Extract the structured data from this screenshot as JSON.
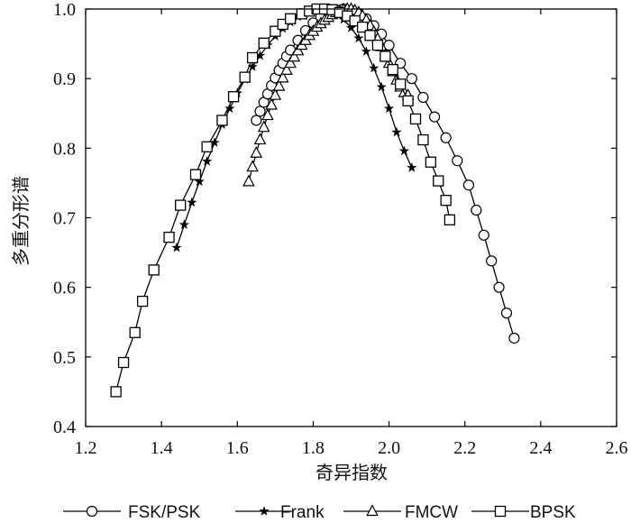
{
  "chart_data": {
    "type": "line",
    "title": "",
    "xlabel": "奇异指数",
    "ylabel": "多重分形谱",
    "xlim": [
      1.2,
      2.6
    ],
    "ylim": [
      0.4,
      1.0
    ],
    "xticks": [
      1.2,
      1.4,
      1.6,
      1.8,
      2.0,
      2.2,
      2.4,
      2.6
    ],
    "yticks": [
      0.4,
      0.5,
      0.6,
      0.7,
      0.8,
      0.9,
      1.0
    ],
    "xtick_labels": [
      "1.2",
      "1.4",
      "1.6",
      "1.8",
      "2.0",
      "2.2",
      "2.4",
      "2.6"
    ],
    "ytick_labels": [
      "0.4",
      "0.5",
      "0.6",
      "0.7",
      "0.8",
      "0.9",
      "1.0"
    ],
    "grid": false,
    "legend": "bottom",
    "series": [
      {
        "name": "FSK/PSK",
        "marker": "circle",
        "x": [
          1.65,
          1.66,
          1.67,
          1.68,
          1.69,
          1.7,
          1.71,
          1.72,
          1.73,
          1.74,
          1.76,
          1.78,
          1.8,
          1.82,
          1.84,
          1.86,
          1.88,
          1.9,
          1.92,
          1.94,
          1.96,
          1.98,
          2.0,
          2.03,
          2.06,
          2.09,
          2.12,
          2.15,
          2.18,
          2.21,
          2.23,
          2.25,
          2.27,
          2.29,
          2.31,
          2.33
        ],
        "y": [
          0.84,
          0.853,
          0.866,
          0.878,
          0.89,
          0.901,
          0.912,
          0.922,
          0.932,
          0.941,
          0.955,
          0.969,
          0.98,
          0.989,
          0.995,
          0.999,
          1.0,
          0.998,
          0.993,
          0.986,
          0.976,
          0.964,
          0.948,
          0.922,
          0.9,
          0.873,
          0.845,
          0.815,
          0.782,
          0.747,
          0.711,
          0.675,
          0.638,
          0.6,
          0.563,
          0.527
        ]
      },
      {
        "name": "Frank",
        "marker": "star",
        "x": [
          1.44,
          1.46,
          1.48,
          1.5,
          1.52,
          1.54,
          1.56,
          1.58,
          1.6,
          1.62,
          1.64,
          1.66,
          1.68,
          1.7,
          1.72,
          1.74,
          1.76,
          1.78,
          1.8,
          1.82,
          1.84,
          1.86,
          1.88,
          1.9,
          1.92,
          1.94,
          1.96,
          1.98,
          2.0,
          2.02,
          2.04,
          2.06
        ],
        "y": [
          0.657,
          0.69,
          0.722,
          0.752,
          0.781,
          0.808,
          0.834,
          0.857,
          0.879,
          0.899,
          0.917,
          0.933,
          0.948,
          0.961,
          0.972,
          0.981,
          0.989,
          0.995,
          0.999,
          1.0,
          0.998,
          0.993,
          0.985,
          0.973,
          0.958,
          0.939,
          0.915,
          0.888,
          0.857,
          0.823,
          0.796,
          0.772
        ]
      },
      {
        "name": "FMCW",
        "marker": "triangle",
        "x": [
          1.63,
          1.64,
          1.65,
          1.66,
          1.67,
          1.68,
          1.69,
          1.7,
          1.71,
          1.72,
          1.73,
          1.74,
          1.75,
          1.76,
          1.77,
          1.78,
          1.79,
          1.8,
          1.81,
          1.82,
          1.83,
          1.84,
          1.85,
          1.86,
          1.87,
          1.88,
          1.89,
          1.9,
          1.91,
          1.92,
          1.93,
          1.94,
          1.95,
          1.96,
          1.97,
          1.98,
          1.99,
          2.0,
          2.01,
          2.02,
          2.03,
          2.04,
          2.05
        ],
        "y": [
          0.752,
          0.773,
          0.793,
          0.812,
          0.83,
          0.847,
          0.862,
          0.876,
          0.889,
          0.901,
          0.912,
          0.922,
          0.931,
          0.94,
          0.948,
          0.955,
          0.962,
          0.968,
          0.974,
          0.979,
          0.984,
          0.988,
          0.992,
          0.995,
          0.997,
          0.999,
          1.0,
          1.0,
          0.998,
          0.995,
          0.99,
          0.984,
          0.976,
          0.967,
          0.957,
          0.946,
          0.934,
          0.922,
          0.91,
          0.898,
          0.888,
          0.88,
          0.876
        ]
      },
      {
        "name": "BPSK",
        "marker": "square",
        "x": [
          1.28,
          1.3,
          1.33,
          1.35,
          1.38,
          1.42,
          1.45,
          1.49,
          1.52,
          1.56,
          1.59,
          1.62,
          1.64,
          1.67,
          1.7,
          1.72,
          1.74,
          1.77,
          1.79,
          1.81,
          1.83,
          1.85,
          1.87,
          1.89,
          1.91,
          1.93,
          1.95,
          1.97,
          1.99,
          2.01,
          2.03,
          2.05,
          2.07,
          2.09,
          2.11,
          2.13,
          2.15,
          2.16
        ],
        "y": [
          0.45,
          0.492,
          0.535,
          0.58,
          0.625,
          0.672,
          0.718,
          0.762,
          0.802,
          0.84,
          0.874,
          0.902,
          0.93,
          0.951,
          0.968,
          0.978,
          0.986,
          0.993,
          0.997,
          1.0,
          1.0,
          0.999,
          0.995,
          0.99,
          0.983,
          0.974,
          0.962,
          0.948,
          0.932,
          0.913,
          0.892,
          0.868,
          0.842,
          0.812,
          0.78,
          0.753,
          0.725,
          0.697
        ]
      }
    ]
  }
}
